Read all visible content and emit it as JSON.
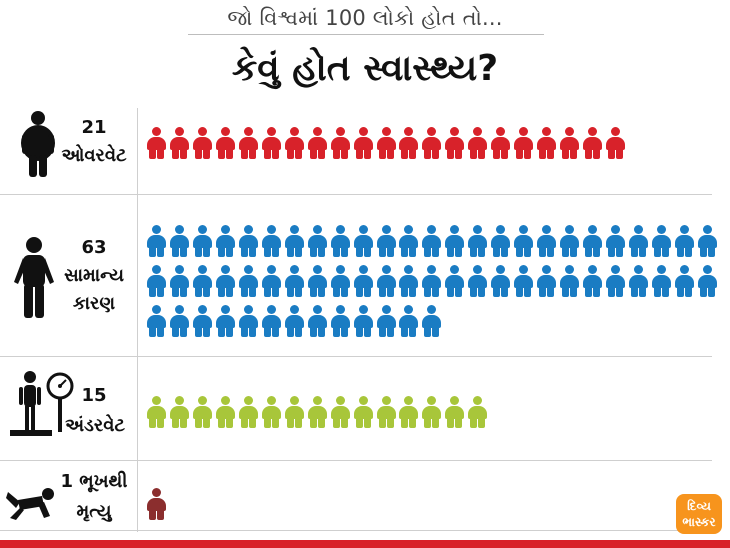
{
  "header": {
    "subtitle": "જો વિશ્વમાં 100 લોકો હોત તો...",
    "title": "કેવું હોત સ્વાસ્થ્ય?"
  },
  "categories": [
    {
      "key": "overweight",
      "count_label": "21",
      "label": "ઓવરવેટ",
      "count": 21,
      "color": "#d8222a"
    },
    {
      "key": "normal",
      "count_label": "63",
      "label_line1": "સામાન્ય",
      "label_line2": "કારણ",
      "count": 63,
      "color": "#1a7cc3"
    },
    {
      "key": "underweight",
      "count_label": "15",
      "label": "અંડરવેટ",
      "count": 15,
      "color": "#a8c63a"
    },
    {
      "key": "starvation",
      "label_line1": "1 ભૂખથી",
      "label_line2": "મૃત્યુ",
      "count": 1,
      "color": "#8b2e2e"
    }
  ],
  "brand": {
    "line1": "દિવ્ય",
    "line2": "ભાસ્કર",
    "color": "#f7941d"
  },
  "colors": {
    "accent_bar": "#d8222a",
    "divider": "#cfcfcf"
  }
}
